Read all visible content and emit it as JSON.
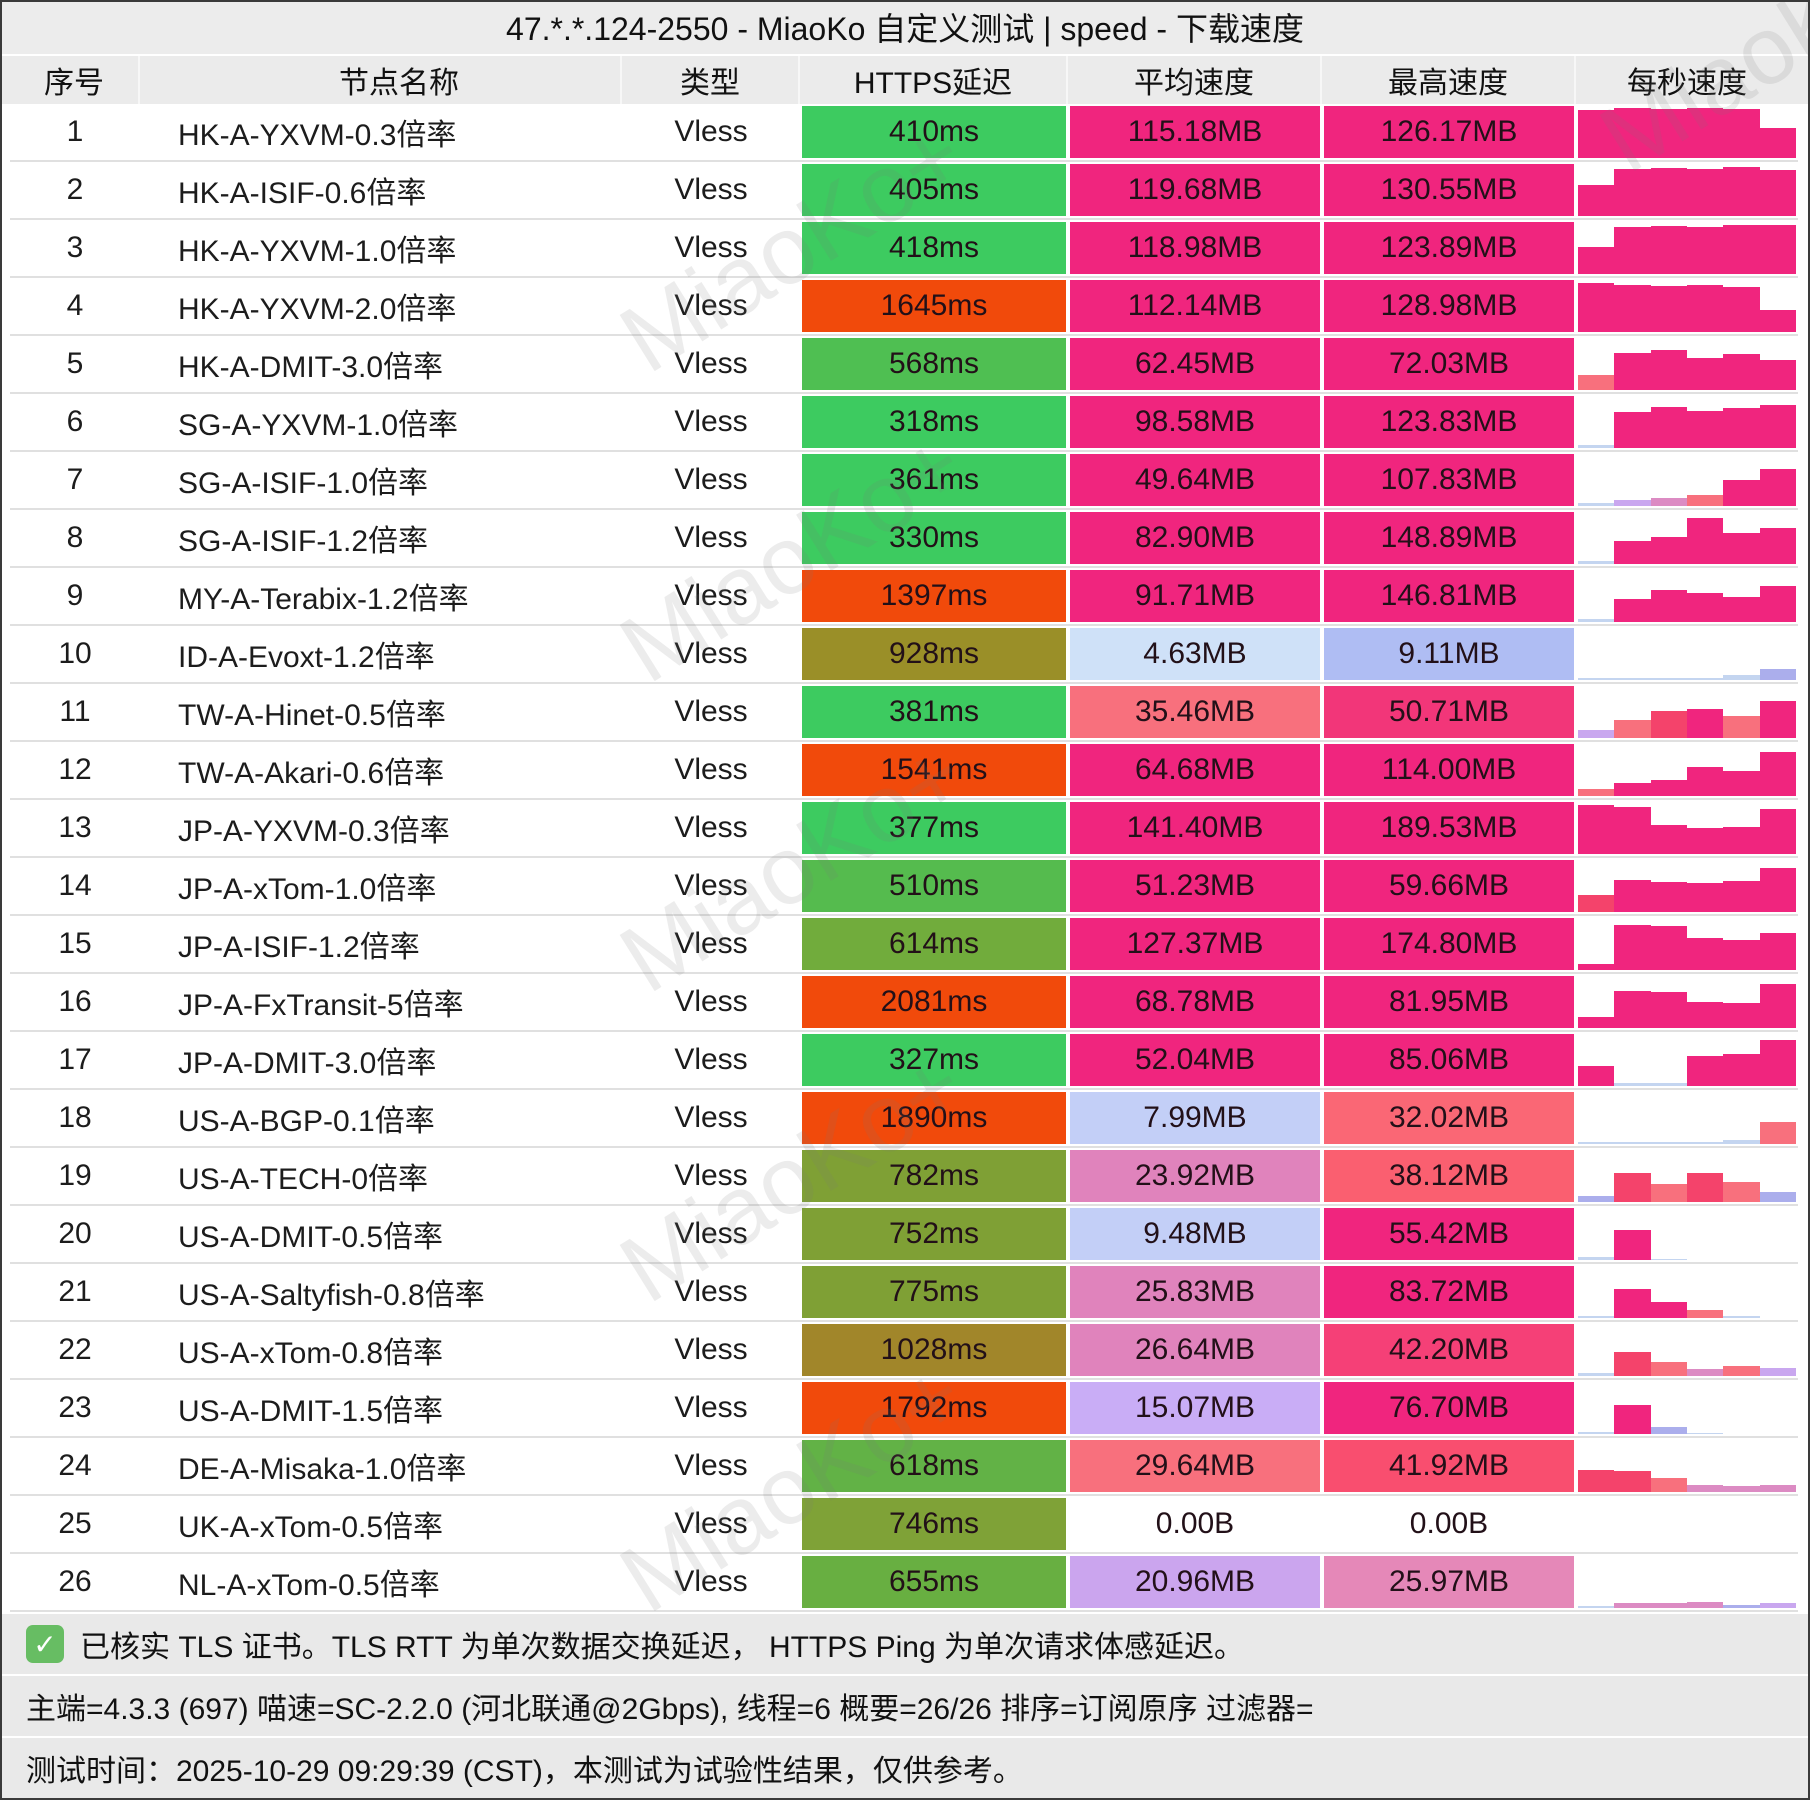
{
  "title": "47.*.*.124-2550 - MiaoKo 自定义测试 | speed - 下载速度",
  "columns": [
    "序号",
    "节点名称",
    "类型",
    "HTTPS延迟",
    "平均速度",
    "最高速度",
    "每秒速度"
  ],
  "palette": {
    "p": "#F0257E",
    "r": "#F4436B",
    "s": "#F8707D",
    "o": "#DC8BC3",
    "v": "#C9A7EF",
    "w": "#ABAEEC",
    "b": "#C4D5F0"
  },
  "rows": [
    {
      "seq": "1",
      "name": "HK-A-YXVM-0.3倍率",
      "type": "Vless",
      "latency": {
        "text": "410ms",
        "color": "#3DCB60"
      },
      "avg": {
        "text": "115.18MB",
        "color": "#F0257E"
      },
      "max": {
        "text": "126.17MB",
        "color": "#F0257E"
      },
      "spark": [
        [
          92,
          "p"
        ],
        [
          96,
          "p"
        ],
        [
          94,
          "p"
        ],
        [
          97,
          "p"
        ],
        [
          95,
          "p"
        ],
        [
          58,
          "p"
        ]
      ]
    },
    {
      "seq": "2",
      "name": "HK-A-ISIF-0.6倍率",
      "type": "Vless",
      "latency": {
        "text": "405ms",
        "color": "#3DCB60"
      },
      "avg": {
        "text": "119.68MB",
        "color": "#F0257E"
      },
      "max": {
        "text": "130.55MB",
        "color": "#F0257E"
      },
      "spark": [
        [
          60,
          "p"
        ],
        [
          90,
          "p"
        ],
        [
          93,
          "p"
        ],
        [
          91,
          "p"
        ],
        [
          95,
          "p"
        ],
        [
          88,
          "p"
        ]
      ]
    },
    {
      "seq": "3",
      "name": "HK-A-YXVM-1.0倍率",
      "type": "Vless",
      "latency": {
        "text": "418ms",
        "color": "#3DCB60"
      },
      "avg": {
        "text": "118.98MB",
        "color": "#F0257E"
      },
      "max": {
        "text": "123.89MB",
        "color": "#F0257E"
      },
      "spark": [
        [
          52,
          "p"
        ],
        [
          90,
          "p"
        ],
        [
          92,
          "p"
        ],
        [
          91,
          "p"
        ],
        [
          94,
          "p"
        ],
        [
          95,
          "p"
        ]
      ]
    },
    {
      "seq": "4",
      "name": "HK-A-YXVM-2.0倍率",
      "type": "Vless",
      "latency": {
        "text": "1645ms",
        "color": "#F14A0B"
      },
      "avg": {
        "text": "112.14MB",
        "color": "#F0257E"
      },
      "max": {
        "text": "128.98MB",
        "color": "#F0257E"
      },
      "spark": [
        [
          94,
          "p"
        ],
        [
          91,
          "p"
        ],
        [
          89,
          "p"
        ],
        [
          90,
          "p"
        ],
        [
          87,
          "p"
        ],
        [
          42,
          "p"
        ]
      ]
    },
    {
      "seq": "5",
      "name": "HK-A-DMIT-3.0倍率",
      "type": "Vless",
      "latency": {
        "text": "568ms",
        "color": "#4FBF52"
      },
      "avg": {
        "text": "62.45MB",
        "color": "#F0257E"
      },
      "max": {
        "text": "72.03MB",
        "color": "#F0257E"
      },
      "spark": [
        [
          28,
          "s"
        ],
        [
          72,
          "p"
        ],
        [
          76,
          "p"
        ],
        [
          62,
          "p"
        ],
        [
          70,
          "p"
        ],
        [
          58,
          "p"
        ]
      ]
    },
    {
      "seq": "6",
      "name": "SG-A-YXVM-1.0倍率",
      "type": "Vless",
      "latency": {
        "text": "318ms",
        "color": "#3DCB60"
      },
      "avg": {
        "text": "98.58MB",
        "color": "#F0257E"
      },
      "max": {
        "text": "123.83MB",
        "color": "#F0257E"
      },
      "spark": [
        [
          5,
          "b"
        ],
        [
          70,
          "p"
        ],
        [
          78,
          "p"
        ],
        [
          72,
          "p"
        ],
        [
          76,
          "p"
        ],
        [
          82,
          "p"
        ]
      ]
    },
    {
      "seq": "7",
      "name": "SG-A-ISIF-1.0倍率",
      "type": "Vless",
      "latency": {
        "text": "361ms",
        "color": "#3DCB60"
      },
      "avg": {
        "text": "49.64MB",
        "color": "#F0257E"
      },
      "max": {
        "text": "107.83MB",
        "color": "#F0257E"
      },
      "spark": [
        [
          6,
          "b"
        ],
        [
          12,
          "v"
        ],
        [
          15,
          "o"
        ],
        [
          22,
          "s"
        ],
        [
          50,
          "p"
        ],
        [
          72,
          "p"
        ]
      ]
    },
    {
      "seq": "8",
      "name": "SG-A-ISIF-1.2倍率",
      "type": "Vless",
      "latency": {
        "text": "330ms",
        "color": "#3DCB60"
      },
      "avg": {
        "text": "82.90MB",
        "color": "#F0257E"
      },
      "max": {
        "text": "148.89MB",
        "color": "#F0257E"
      },
      "spark": [
        [
          5,
          "b"
        ],
        [
          45,
          "p"
        ],
        [
          52,
          "p"
        ],
        [
          88,
          "p"
        ],
        [
          60,
          "p"
        ],
        [
          70,
          "p"
        ]
      ]
    },
    {
      "seq": "9",
      "name": "MY-A-Terabix-1.2倍率",
      "type": "Vless",
      "latency": {
        "text": "1397ms",
        "color": "#F14A0B"
      },
      "avg": {
        "text": "91.71MB",
        "color": "#F0257E"
      },
      "max": {
        "text": "146.81MB",
        "color": "#F0257E"
      },
      "spark": [
        [
          6,
          "b"
        ],
        [
          45,
          "p"
        ],
        [
          62,
          "p"
        ],
        [
          55,
          "p"
        ],
        [
          48,
          "p"
        ],
        [
          70,
          "p"
        ]
      ]
    },
    {
      "seq": "10",
      "name": "ID-A-Evoxt-1.2倍率",
      "type": "Vless",
      "latency": {
        "text": "928ms",
        "color": "#9A8F28"
      },
      "avg": {
        "text": "4.63MB",
        "color": "#CFE1F8"
      },
      "max": {
        "text": "9.11MB",
        "color": "#AFBDF3"
      },
      "spark": [
        [
          3,
          "b"
        ],
        [
          3,
          "b"
        ],
        [
          3,
          "b"
        ],
        [
          3,
          "b"
        ],
        [
          10,
          "b"
        ],
        [
          22,
          "w"
        ]
      ]
    },
    {
      "seq": "11",
      "name": "TW-A-Hinet-0.5倍率",
      "type": "Vless",
      "latency": {
        "text": "381ms",
        "color": "#3DCB60"
      },
      "avg": {
        "text": "35.46MB",
        "color": "#F8707D"
      },
      "max": {
        "text": "50.71MB",
        "color": "#F23679"
      },
      "spark": [
        [
          16,
          "v"
        ],
        [
          35,
          "s"
        ],
        [
          52,
          "r"
        ],
        [
          56,
          "p"
        ],
        [
          42,
          "s"
        ],
        [
          72,
          "p"
        ]
      ]
    },
    {
      "seq": "12",
      "name": "TW-A-Akari-0.6倍率",
      "type": "Vless",
      "latency": {
        "text": "1541ms",
        "color": "#F14A0B"
      },
      "avg": {
        "text": "64.68MB",
        "color": "#F0257E"
      },
      "max": {
        "text": "114.00MB",
        "color": "#F0257E"
      },
      "spark": [
        [
          14,
          "s"
        ],
        [
          25,
          "p"
        ],
        [
          30,
          "p"
        ],
        [
          55,
          "p"
        ],
        [
          48,
          "p"
        ],
        [
          85,
          "p"
        ]
      ]
    },
    {
      "seq": "13",
      "name": "JP-A-YXVM-0.3倍率",
      "type": "Vless",
      "latency": {
        "text": "377ms",
        "color": "#3DCB60"
      },
      "avg": {
        "text": "141.40MB",
        "color": "#F0257E"
      },
      "max": {
        "text": "189.53MB",
        "color": "#F0257E"
      },
      "spark": [
        [
          94,
          "p"
        ],
        [
          90,
          "p"
        ],
        [
          55,
          "p"
        ],
        [
          50,
          "p"
        ],
        [
          52,
          "p"
        ],
        [
          86,
          "p"
        ]
      ]
    },
    {
      "seq": "14",
      "name": "JP-A-xTom-1.0倍率",
      "type": "Vless",
      "latency": {
        "text": "510ms",
        "color": "#55BB4E"
      },
      "avg": {
        "text": "51.23MB",
        "color": "#F0257E"
      },
      "max": {
        "text": "59.66MB",
        "color": "#F0257E"
      },
      "spark": [
        [
          32,
          "r"
        ],
        [
          62,
          "p"
        ],
        [
          58,
          "p"
        ],
        [
          55,
          "p"
        ],
        [
          60,
          "p"
        ],
        [
          84,
          "p"
        ]
      ]
    },
    {
      "seq": "15",
      "name": "JP-A-ISIF-1.2倍率",
      "type": "Vless",
      "latency": {
        "text": "614ms",
        "color": "#71AC3C"
      },
      "avg": {
        "text": "127.37MB",
        "color": "#F0257E"
      },
      "max": {
        "text": "174.80MB",
        "color": "#F0257E"
      },
      "spark": [
        [
          12,
          "p"
        ],
        [
          86,
          "p"
        ],
        [
          84,
          "p"
        ],
        [
          62,
          "p"
        ],
        [
          58,
          "p"
        ],
        [
          72,
          "p"
        ]
      ]
    },
    {
      "seq": "16",
      "name": "JP-A-FxTransit-5倍率",
      "type": "Vless",
      "latency": {
        "text": "2081ms",
        "color": "#F14A0B"
      },
      "avg": {
        "text": "68.78MB",
        "color": "#F0257E"
      },
      "max": {
        "text": "81.95MB",
        "color": "#F0257E"
      },
      "spark": [
        [
          22,
          "p"
        ],
        [
          72,
          "p"
        ],
        [
          70,
          "p"
        ],
        [
          50,
          "p"
        ],
        [
          48,
          "p"
        ],
        [
          84,
          "p"
        ]
      ]
    },
    {
      "seq": "17",
      "name": "JP-A-DMIT-3.0倍率",
      "type": "Vless",
      "latency": {
        "text": "327ms",
        "color": "#3DCB60"
      },
      "avg": {
        "text": "52.04MB",
        "color": "#F0257E"
      },
      "max": {
        "text": "85.06MB",
        "color": "#F0257E"
      },
      "spark": [
        [
          38,
          "p"
        ],
        [
          5,
          "b"
        ],
        [
          5,
          "b"
        ],
        [
          58,
          "p"
        ],
        [
          62,
          "p"
        ],
        [
          88,
          "p"
        ]
      ]
    },
    {
      "seq": "18",
      "name": "US-A-BGP-0.1倍率",
      "type": "Vless",
      "latency": {
        "text": "1890ms",
        "color": "#F14A0B"
      },
      "avg": {
        "text": "7.99MB",
        "color": "#C3CFF7"
      },
      "max": {
        "text": "32.02MB",
        "color": "#FA6775"
      },
      "spark": [
        [
          3,
          "b"
        ],
        [
          3,
          "b"
        ],
        [
          3,
          "b"
        ],
        [
          3,
          "b"
        ],
        [
          8,
          "b"
        ],
        [
          42,
          "s"
        ]
      ]
    },
    {
      "seq": "19",
      "name": "US-A-TECH-0倍率",
      "type": "Vless",
      "latency": {
        "text": "782ms",
        "color": "#7FA035"
      },
      "avg": {
        "text": "23.92MB",
        "color": "#E083BC"
      },
      "max": {
        "text": "38.12MB",
        "color": "#FA5F70"
      },
      "spark": [
        [
          12,
          "w"
        ],
        [
          55,
          "r"
        ],
        [
          35,
          "s"
        ],
        [
          55,
          "r"
        ],
        [
          38,
          "s"
        ],
        [
          20,
          "w"
        ]
      ]
    },
    {
      "seq": "20",
      "name": "US-A-DMIT-0.5倍率",
      "type": "Vless",
      "latency": {
        "text": "752ms",
        "color": "#7FA035"
      },
      "avg": {
        "text": "9.48MB",
        "color": "#C3CFF7"
      },
      "max": {
        "text": "55.42MB",
        "color": "#F0257E"
      },
      "spark": [
        [
          6,
          "b"
        ],
        [
          58,
          "p"
        ],
        [
          2,
          "b"
        ],
        [
          0,
          "p"
        ],
        [
          0,
          "p"
        ],
        [
          0,
          "p"
        ]
      ]
    },
    {
      "seq": "21",
      "name": "US-A-Saltyfish-0.8倍率",
      "type": "Vless",
      "latency": {
        "text": "775ms",
        "color": "#7FA035"
      },
      "avg": {
        "text": "25.83MB",
        "color": "#E083BC"
      },
      "max": {
        "text": "83.72MB",
        "color": "#F0257E"
      },
      "spark": [
        [
          4,
          "b"
        ],
        [
          56,
          "p"
        ],
        [
          30,
          "p"
        ],
        [
          16,
          "s"
        ],
        [
          3,
          "b"
        ],
        [
          0,
          "p"
        ]
      ]
    },
    {
      "seq": "22",
      "name": "US-A-xTom-0.8倍率",
      "type": "Vless",
      "latency": {
        "text": "1028ms",
        "color": "#A1862A"
      },
      "avg": {
        "text": "26.64MB",
        "color": "#E083BC"
      },
      "max": {
        "text": "42.20MB",
        "color": "#F54077"
      },
      "spark": [
        [
          5,
          "b"
        ],
        [
          46,
          "r"
        ],
        [
          26,
          "s"
        ],
        [
          14,
          "o"
        ],
        [
          20,
          "s"
        ],
        [
          16,
          "v"
        ]
      ]
    },
    {
      "seq": "23",
      "name": "US-A-DMIT-1.5倍率",
      "type": "Vless",
      "latency": {
        "text": "1792ms",
        "color": "#F14A0B"
      },
      "avg": {
        "text": "15.07MB",
        "color": "#C9ADF6"
      },
      "max": {
        "text": "76.70MB",
        "color": "#F0257E"
      },
      "spark": [
        [
          4,
          "b"
        ],
        [
          56,
          "p"
        ],
        [
          13,
          "w"
        ],
        [
          2,
          "b"
        ],
        [
          0,
          "p"
        ],
        [
          0,
          "p"
        ]
      ]
    },
    {
      "seq": "24",
      "name": "DE-A-Misaka-1.0倍率",
      "type": "Vless",
      "latency": {
        "text": "618ms",
        "color": "#62B246"
      },
      "avg": {
        "text": "29.64MB",
        "color": "#F8707D"
      },
      "max": {
        "text": "41.92MB",
        "color": "#F94E6F"
      },
      "spark": [
        [
          42,
          "r"
        ],
        [
          40,
          "r"
        ],
        [
          26,
          "s"
        ],
        [
          13,
          "o"
        ],
        [
          11,
          "o"
        ],
        [
          13,
          "o"
        ]
      ]
    },
    {
      "seq": "25",
      "name": "UK-A-xTom-0.5倍率",
      "type": "Vless",
      "latency": {
        "text": "746ms",
        "color": "#7FA237"
      },
      "avg": {
        "text": "0.00B",
        "color": "#FFFFFF"
      },
      "max": {
        "text": "0.00B",
        "color": "#FFFFFF"
      },
      "spark": [
        [
          0,
          "p"
        ],
        [
          0,
          "p"
        ],
        [
          0,
          "p"
        ],
        [
          0,
          "p"
        ],
        [
          0,
          "p"
        ],
        [
          0,
          "p"
        ]
      ]
    },
    {
      "seq": "26",
      "name": "NL-A-xTom-0.5倍率",
      "type": "Vless",
      "latency": {
        "text": "655ms",
        "color": "#68AF41"
      },
      "avg": {
        "text": "20.96MB",
        "color": "#CBA5EE"
      },
      "max": {
        "text": "25.97MB",
        "color": "#E588B8"
      },
      "spark": [
        [
          3,
          "b"
        ],
        [
          9,
          "o"
        ],
        [
          10,
          "o"
        ],
        [
          12,
          "o"
        ],
        [
          6,
          "w"
        ],
        [
          9,
          "v"
        ]
      ]
    }
  ],
  "footer": {
    "check_glyph": "✓",
    "tls_note": "已核实 TLS 证书。TLS RTT 为单次数据交换延迟， HTTPS Ping 为单次请求体感延迟。",
    "meta": "主端=4.3.3 (697) 喵速=SC-2.2.0 (河北联通@2Gbps), 线程=6 概要=26/26 排序=订阅原序 过滤器=",
    "time": "测试时间：2025-10-29 09:29:39 (CST)，本测试为试验性结果，仅供参考。"
  },
  "watermark": {
    "text": "MiaoKo+"
  }
}
